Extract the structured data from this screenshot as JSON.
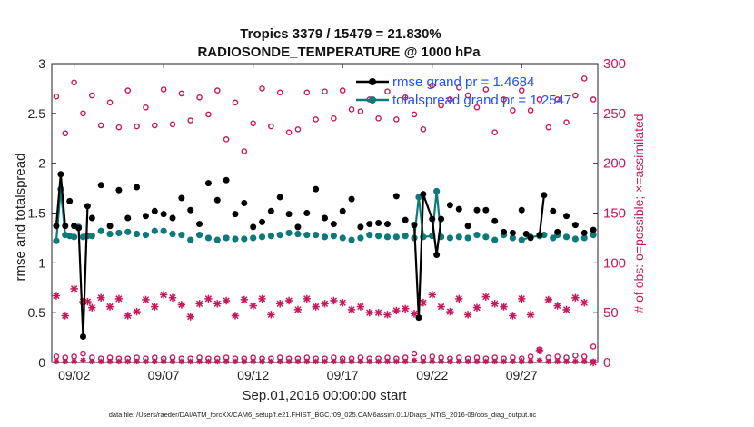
{
  "chart_data": {
    "type": "line",
    "title_line1": "Tropics 3379 / 15479 = 21.830%",
    "title_line2": "RADIOSONDE_TEMPERATURE @ 1000 hPa",
    "xlabel": "Sep.01,2016 00:00:00 start",
    "ylabel_left": "rmse and totalspread",
    "ylabel_right": "# of obs: o=possible; ×=assimilated",
    "ylim_left": [
      0,
      3
    ],
    "ylim_right": [
      0,
      300
    ],
    "xlim": [
      0.75,
      31.25
    ],
    "left_ticks": [
      "0",
      "0.5",
      "1",
      "1.5",
      "2",
      "2.5",
      "3"
    ],
    "right_ticks": [
      "0",
      "50",
      "100",
      "150",
      "200",
      "250",
      "300"
    ],
    "x_ticks": [
      {
        "day": 2,
        "label": "09/02"
      },
      {
        "day": 7,
        "label": "09/07"
      },
      {
        "day": 12,
        "label": "09/12"
      },
      {
        "day": 17,
        "label": "09/17"
      },
      {
        "day": 22,
        "label": "09/22"
      },
      {
        "day": 27,
        "label": "09/27"
      }
    ],
    "legend": {
      "rmse": "rmse grand pr = 1.4684",
      "spread": "totalspread grand pr = 1.2547"
    },
    "colors": {
      "rmse": "#000000",
      "spread": "#0c7a7a",
      "obs": "#c8175d",
      "legend_text": "#1f4fff"
    },
    "rmse": [
      [
        1.0,
        1.37
      ],
      [
        1.25,
        1.89
      ],
      [
        1.5,
        1.37
      ],
      [
        1.75,
        1.62
      ],
      [
        2.0,
        1.37
      ],
      [
        2.25,
        1.35
      ],
      [
        2.5,
        0.26
      ],
      [
        2.75,
        1.57
      ],
      [
        3.0,
        1.45
      ],
      [
        3.5,
        1.78
      ],
      [
        4.0,
        1.37
      ],
      [
        4.5,
        1.73
      ],
      [
        5.0,
        1.45
      ],
      [
        5.5,
        1.76
      ],
      [
        6.0,
        1.47
      ],
      [
        6.5,
        1.52
      ],
      [
        7.0,
        1.49
      ],
      [
        7.5,
        1.45
      ],
      [
        8.0,
        1.65
      ],
      [
        8.5,
        1.53
      ],
      [
        9.0,
        1.39
      ],
      [
        9.5,
        1.8
      ],
      [
        10.0,
        1.63
      ],
      [
        10.5,
        1.83
      ],
      [
        11.0,
        1.49
      ],
      [
        11.5,
        1.6
      ],
      [
        12.0,
        1.36
      ],
      [
        12.5,
        1.41
      ],
      [
        13.0,
        1.52
      ],
      [
        13.5,
        1.66
      ],
      [
        14.0,
        1.49
      ],
      [
        14.5,
        1.36
      ],
      [
        15.0,
        1.5
      ],
      [
        15.5,
        1.74
      ],
      [
        16.0,
        1.45
      ],
      [
        16.5,
        1.39
      ],
      [
        17.0,
        1.52
      ],
      [
        17.5,
        1.64
      ],
      [
        18.0,
        1.36
      ],
      [
        18.5,
        1.39
      ],
      [
        19.0,
        1.4
      ],
      [
        19.5,
        1.39
      ],
      [
        20.0,
        1.67
      ],
      [
        20.5,
        1.43
      ],
      [
        21.0,
        1.38
      ],
      [
        21.25,
        0.45
      ],
      [
        21.5,
        1.69
      ],
      [
        22.0,
        1.44
      ],
      [
        22.25,
        1.08
      ],
      [
        22.5,
        1.44
      ],
      [
        23.0,
        1.58
      ],
      [
        23.5,
        1.54
      ],
      [
        24.0,
        1.37
      ],
      [
        24.5,
        1.53
      ],
      [
        25.0,
        1.53
      ],
      [
        25.5,
        1.42
      ],
      [
        26.0,
        1.31
      ],
      [
        26.5,
        1.3
      ],
      [
        27.0,
        1.53
      ],
      [
        27.25,
        1.29
      ],
      [
        27.5,
        1.25
      ],
      [
        28.0,
        1.28
      ],
      [
        28.25,
        1.68
      ],
      [
        28.75,
        1.52
      ],
      [
        29.0,
        1.31
      ],
      [
        29.5,
        1.47
      ],
      [
        30.0,
        1.38
      ],
      [
        30.5,
        1.3
      ],
      [
        31.0,
        1.33
      ]
    ],
    "rmse_lines": [
      [
        [
          1.0,
          1.37
        ],
        [
          1.25,
          1.89
        ],
        [
          1.5,
          1.37
        ]
      ],
      [
        [
          2.25,
          1.35
        ],
        [
          2.5,
          0.26
        ],
        [
          2.75,
          1.57
        ]
      ],
      [
        [
          21.0,
          1.38
        ],
        [
          21.25,
          0.45
        ],
        [
          21.5,
          1.69
        ],
        [
          22.0,
          1.44
        ],
        [
          22.25,
          1.08
        ],
        [
          22.5,
          1.44
        ]
      ],
      [
        [
          28.0,
          1.28
        ],
        [
          28.25,
          1.68
        ]
      ]
    ],
    "spread": [
      [
        1.0,
        1.22
      ],
      [
        1.25,
        1.74
      ],
      [
        1.5,
        1.28
      ],
      [
        1.75,
        1.27
      ],
      [
        2.0,
        1.26
      ],
      [
        2.25,
        1.36
      ],
      [
        2.5,
        1.26
      ],
      [
        2.75,
        1.27
      ],
      [
        3.0,
        1.27
      ],
      [
        3.5,
        1.32
      ],
      [
        4.0,
        1.29
      ],
      [
        4.5,
        1.3
      ],
      [
        5.0,
        1.31
      ],
      [
        5.5,
        1.29
      ],
      [
        6.0,
        1.28
      ],
      [
        6.5,
        1.32
      ],
      [
        7.0,
        1.32
      ],
      [
        7.5,
        1.29
      ],
      [
        8.0,
        1.28
      ],
      [
        8.5,
        1.23
      ],
      [
        9.0,
        1.28
      ],
      [
        9.5,
        1.25
      ],
      [
        10.0,
        1.23
      ],
      [
        10.5,
        1.25
      ],
      [
        11.0,
        1.24
      ],
      [
        11.5,
        1.24
      ],
      [
        12.0,
        1.25
      ],
      [
        12.5,
        1.26
      ],
      [
        13.0,
        1.27
      ],
      [
        13.5,
        1.28
      ],
      [
        14.0,
        1.3
      ],
      [
        14.5,
        1.29
      ],
      [
        15.0,
        1.28
      ],
      [
        15.5,
        1.28
      ],
      [
        16.0,
        1.26
      ],
      [
        16.5,
        1.27
      ],
      [
        17.0,
        1.25
      ],
      [
        17.5,
        1.23
      ],
      [
        18.0,
        1.25
      ],
      [
        18.5,
        1.28
      ],
      [
        19.0,
        1.27
      ],
      [
        19.5,
        1.26
      ],
      [
        20.0,
        1.26
      ],
      [
        20.5,
        1.27
      ],
      [
        21.0,
        1.25
      ],
      [
        21.25,
        1.66
      ],
      [
        21.5,
        1.26
      ],
      [
        22.0,
        1.27
      ],
      [
        22.25,
        1.72
      ],
      [
        22.5,
        1.26
      ],
      [
        23.0,
        1.25
      ],
      [
        23.5,
        1.26
      ],
      [
        24.0,
        1.25
      ],
      [
        24.5,
        1.28
      ],
      [
        25.0,
        1.26
      ],
      [
        25.5,
        1.23
      ],
      [
        26.0,
        1.28
      ],
      [
        26.5,
        1.25
      ],
      [
        27.0,
        1.23
      ],
      [
        27.5,
        1.26
      ],
      [
        28.0,
        1.27
      ],
      [
        28.25,
        1.28
      ],
      [
        28.75,
        1.25
      ],
      [
        29.0,
        1.28
      ],
      [
        29.5,
        1.26
      ],
      [
        30.0,
        1.24
      ],
      [
        30.5,
        1.25
      ],
      [
        31.0,
        1.28
      ]
    ],
    "spread_lines": [
      [
        [
          1.0,
          1.22
        ],
        [
          1.25,
          1.74
        ],
        [
          1.5,
          1.28
        ]
      ],
      [
        [
          21.0,
          1.25
        ],
        [
          21.25,
          1.66
        ],
        [
          21.5,
          1.26
        ],
        [
          22.0,
          1.27
        ],
        [
          22.25,
          1.72
        ],
        [
          22.5,
          1.26
        ]
      ],
      [
        [
          27.0,
          1.23
        ],
        [
          27.5,
          1.26
        ],
        [
          28.0,
          1.27
        ],
        [
          28.25,
          1.28
        ]
      ]
    ],
    "obs_possible": [
      [
        1.0,
        267
      ],
      [
        1.5,
        230
      ],
      [
        2.0,
        281
      ],
      [
        2.5,
        250
      ],
      [
        3.0,
        268
      ],
      [
        3.5,
        238
      ],
      [
        4.0,
        261
      ],
      [
        4.5,
        236
      ],
      [
        5.0,
        273
      ],
      [
        5.5,
        237
      ],
      [
        6.0,
        256
      ],
      [
        6.5,
        238
      ],
      [
        7.0,
        274
      ],
      [
        7.5,
        239
      ],
      [
        8.0,
        270
      ],
      [
        8.5,
        243
      ],
      [
        9.0,
        266
      ],
      [
        9.5,
        249
      ],
      [
        10.0,
        273
      ],
      [
        10.5,
        224
      ],
      [
        11.0,
        261
      ],
      [
        11.5,
        212
      ],
      [
        12.0,
        240
      ],
      [
        12.5,
        275
      ],
      [
        13.0,
        237
      ],
      [
        13.5,
        271
      ],
      [
        14.0,
        231
      ],
      [
        14.5,
        234
      ],
      [
        15.0,
        271
      ],
      [
        15.5,
        244
      ],
      [
        16.0,
        272
      ],
      [
        16.5,
        245
      ],
      [
        17.0,
        273
      ],
      [
        17.5,
        254
      ],
      [
        18.0,
        252
      ],
      [
        18.5,
        264
      ],
      [
        19.0,
        245
      ],
      [
        19.5,
        272
      ],
      [
        20.0,
        244
      ],
      [
        20.5,
        266
      ],
      [
        21.0,
        249
      ],
      [
        21.5,
        234
      ],
      [
        22.0,
        278
      ],
      [
        22.5,
        258
      ],
      [
        23.0,
        264
      ],
      [
        23.5,
        276
      ],
      [
        24.0,
        268
      ],
      [
        24.5,
        256
      ],
      [
        25.0,
        274
      ],
      [
        25.5,
        231
      ],
      [
        26.0,
        264
      ],
      [
        26.5,
        253
      ],
      [
        27.0,
        273
      ],
      [
        27.5,
        253
      ],
      [
        28.0,
        264
      ],
      [
        28.5,
        236
      ],
      [
        29.0,
        264
      ],
      [
        29.5,
        241
      ],
      [
        30.0,
        268
      ],
      [
        30.5,
        285
      ],
      [
        31.0,
        264
      ]
    ],
    "obs_assimilated": [
      [
        1.0,
        67
      ],
      [
        1.5,
        47
      ],
      [
        2.0,
        74
      ],
      [
        2.5,
        61
      ],
      [
        2.75,
        61
      ],
      [
        3.0,
        55
      ],
      [
        3.5,
        65
      ],
      [
        4.0,
        56
      ],
      [
        4.5,
        64
      ],
      [
        5.0,
        47
      ],
      [
        5.5,
        51
      ],
      [
        6.0,
        63
      ],
      [
        6.5,
        56
      ],
      [
        7.0,
        68
      ],
      [
        7.5,
        65
      ],
      [
        8.0,
        58
      ],
      [
        8.5,
        46
      ],
      [
        9.0,
        59
      ],
      [
        9.5,
        64
      ],
      [
        10.0,
        59
      ],
      [
        10.5,
        62
      ],
      [
        11.0,
        47
      ],
      [
        11.5,
        63
      ],
      [
        12.0,
        57
      ],
      [
        12.5,
        64
      ],
      [
        13.0,
        48
      ],
      [
        13.5,
        59
      ],
      [
        14.0,
        62
      ],
      [
        14.5,
        53
      ],
      [
        15.0,
        64
      ],
      [
        15.5,
        56
      ],
      [
        16.0,
        59
      ],
      [
        16.5,
        62
      ],
      [
        17.0,
        60
      ],
      [
        17.5,
        53
      ],
      [
        18.0,
        56
      ],
      [
        18.5,
        50
      ],
      [
        19.0,
        50
      ],
      [
        19.5,
        48
      ],
      [
        20.0,
        52
      ],
      [
        20.5,
        54
      ],
      [
        21.0,
        49
      ],
      [
        21.5,
        60
      ],
      [
        22.0,
        68
      ],
      [
        22.5,
        56
      ],
      [
        23.0,
        51
      ],
      [
        23.5,
        64
      ],
      [
        24.0,
        48
      ],
      [
        24.5,
        55
      ],
      [
        25.0,
        66
      ],
      [
        25.5,
        59
      ],
      [
        26.0,
        56
      ],
      [
        26.5,
        47
      ],
      [
        27.0,
        64
      ],
      [
        27.5,
        48
      ],
      [
        28.0,
        12
      ],
      [
        28.5,
        63
      ],
      [
        29.0,
        57
      ],
      [
        29.5,
        53
      ],
      [
        30.0,
        65
      ],
      [
        30.5,
        60
      ],
      [
        31.0,
        0
      ]
    ],
    "obs_possible_low": [
      [
        1.0,
        6
      ],
      [
        1.5,
        5
      ],
      [
        2.0,
        6
      ],
      [
        2.5,
        9
      ],
      [
        3.0,
        5
      ],
      [
        3.5,
        4
      ],
      [
        4.0,
        5
      ],
      [
        4.5,
        4
      ],
      [
        5.0,
        4
      ],
      [
        5.5,
        5
      ],
      [
        6.0,
        4
      ],
      [
        6.5,
        5
      ],
      [
        7.0,
        4
      ],
      [
        7.5,
        5
      ],
      [
        8.0,
        4
      ],
      [
        8.5,
        4
      ],
      [
        9.0,
        5
      ],
      [
        9.5,
        4
      ],
      [
        10.0,
        4
      ],
      [
        10.5,
        5
      ],
      [
        11.0,
        4
      ],
      [
        11.5,
        4
      ],
      [
        12.0,
        5
      ],
      [
        12.5,
        4
      ],
      [
        13.0,
        4
      ],
      [
        13.5,
        5
      ],
      [
        14.0,
        4
      ],
      [
        14.5,
        4
      ],
      [
        15.0,
        5
      ],
      [
        15.5,
        4
      ],
      [
        16.0,
        4
      ],
      [
        16.5,
        5
      ],
      [
        17.0,
        4
      ],
      [
        17.5,
        4
      ],
      [
        18.0,
        5
      ],
      [
        18.5,
        4
      ],
      [
        19.0,
        4
      ],
      [
        19.5,
        5
      ],
      [
        20.0,
        4
      ],
      [
        20.5,
        5
      ],
      [
        21.0,
        9
      ],
      [
        21.5,
        5
      ],
      [
        22.0,
        6
      ],
      [
        22.5,
        5
      ],
      [
        23.0,
        4
      ],
      [
        23.5,
        5
      ],
      [
        24.0,
        4
      ],
      [
        24.5,
        5
      ],
      [
        25.0,
        4
      ],
      [
        25.5,
        5
      ],
      [
        26.0,
        4
      ],
      [
        26.5,
        5
      ],
      [
        27.0,
        4
      ],
      [
        27.5,
        6
      ],
      [
        28.0,
        13
      ],
      [
        28.5,
        5
      ],
      [
        29.0,
        6
      ],
      [
        29.5,
        5
      ],
      [
        30.0,
        7
      ],
      [
        30.5,
        6
      ],
      [
        31.0,
        16
      ]
    ],
    "obs_assimilated_low": [
      [
        1.0,
        1
      ],
      [
        1.5,
        1
      ],
      [
        2.0,
        1
      ],
      [
        2.5,
        2
      ],
      [
        3.0,
        1
      ],
      [
        3.5,
        1
      ],
      [
        4.0,
        1
      ],
      [
        4.5,
        1
      ],
      [
        5.0,
        1
      ],
      [
        5.5,
        1
      ],
      [
        6.0,
        1
      ],
      [
        6.5,
        1
      ],
      [
        7.0,
        1
      ],
      [
        7.5,
        1
      ],
      [
        8.0,
        1
      ],
      [
        8.5,
        1
      ],
      [
        9.0,
        1
      ],
      [
        9.5,
        1
      ],
      [
        10.0,
        1
      ],
      [
        10.5,
        1
      ],
      [
        11.0,
        1
      ],
      [
        11.5,
        1
      ],
      [
        12.0,
        1
      ],
      [
        12.5,
        1
      ],
      [
        13.0,
        1
      ],
      [
        13.5,
        1
      ],
      [
        14.0,
        1
      ],
      [
        14.5,
        1
      ],
      [
        15.0,
        1
      ],
      [
        15.5,
        1
      ],
      [
        16.0,
        1
      ],
      [
        16.5,
        1
      ],
      [
        17.0,
        1
      ],
      [
        17.5,
        1
      ],
      [
        18.0,
        1
      ],
      [
        18.5,
        1
      ],
      [
        19.0,
        1
      ],
      [
        19.5,
        1
      ],
      [
        20.0,
        1
      ],
      [
        20.5,
        1
      ],
      [
        21.0,
        2
      ],
      [
        21.5,
        1
      ],
      [
        22.0,
        1
      ],
      [
        22.5,
        1
      ],
      [
        23.0,
        1
      ],
      [
        23.5,
        1
      ],
      [
        24.0,
        1
      ],
      [
        24.5,
        1
      ],
      [
        25.0,
        1
      ],
      [
        25.5,
        1
      ],
      [
        26.0,
        1
      ],
      [
        26.5,
        1
      ],
      [
        27.0,
        1
      ],
      [
        27.5,
        1
      ],
      [
        28.0,
        2
      ],
      [
        28.5,
        1
      ],
      [
        29.0,
        1
      ],
      [
        29.5,
        1
      ],
      [
        30.0,
        1
      ],
      [
        30.5,
        1
      ],
      [
        31.0,
        1
      ]
    ]
  },
  "footer": "data file: /Users/raeder/DAI/ATM_forcXX/CAM6_setup/f.e21.FHIST_BGC.f09_025.CAM6assim.011/Diags_NTrS_2016-09/obs_diag_output.nc"
}
